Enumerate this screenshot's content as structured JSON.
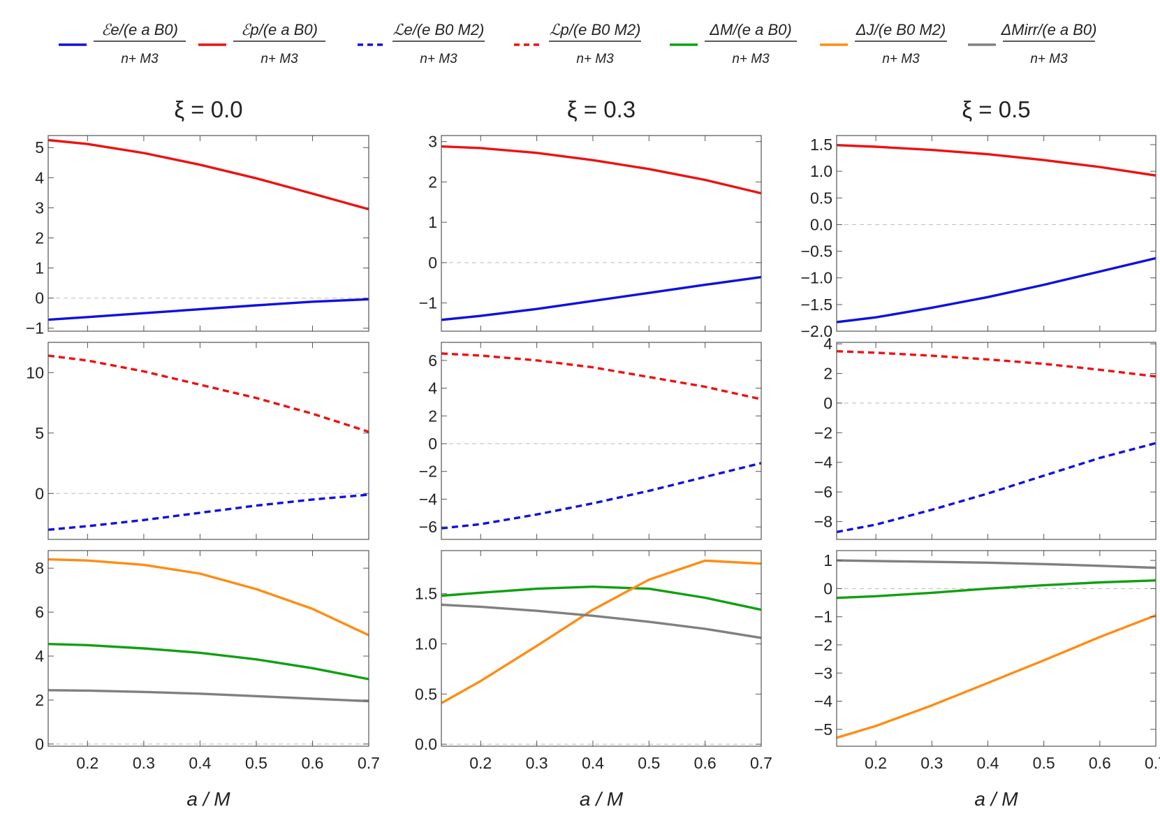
{
  "chart_data": {
    "type": "line",
    "xlabel": "a / M",
    "xlim": [
      0.13,
      0.7
    ],
    "xticks": [
      0.2,
      0.3,
      0.4,
      0.5,
      0.6,
      0.7
    ],
    "column_titles": [
      "ξ = 0.0",
      "ξ = 0.3",
      "ξ = 0.5"
    ],
    "legend": [
      {
        "key": "Ee",
        "numerator": "ℰe/(e a B0)",
        "denominator": "n+ M3",
        "color": "#1010e0",
        "dash": "solid"
      },
      {
        "key": "Ep",
        "numerator": "ℰp/(e a B0)",
        "denominator": "n+ M3",
        "color": "#ee1111",
        "dash": "solid"
      },
      {
        "key": "Le",
        "numerator": "ℒe/(e B0 M2)",
        "denominator": "n+ M3",
        "color": "#1010e0",
        "dash": "dashed"
      },
      {
        "key": "Lp",
        "numerator": "ℒp/(e B0 M2)",
        "denominator": "n+ M3",
        "color": "#ee1111",
        "dash": "dashed"
      },
      {
        "key": "dM",
        "numerator": "ΔM/(e a B0)",
        "denominator": "n+ M3",
        "color": "#11a011",
        "dash": "solid"
      },
      {
        "key": "dJ",
        "numerator": "ΔJ/(e B0 M2)",
        "denominator": "n+ M3",
        "color": "#ff8c14",
        "dash": "solid"
      },
      {
        "key": "dMirr",
        "numerator": "ΔMirr/(e a B0)",
        "denominator": "n+ M3",
        "color": "#808080",
        "dash": "solid"
      }
    ],
    "x": [
      0.13,
      0.2,
      0.3,
      0.4,
      0.5,
      0.6,
      0.7
    ],
    "panels": [
      {
        "column": 0,
        "row": 0,
        "ylim": [
          -1.1,
          5.4
        ],
        "yticks": [
          -1,
          0,
          1,
          2,
          3,
          4,
          5
        ],
        "series": [
          {
            "key": "Ep",
            "values": [
              5.25,
              5.12,
              4.82,
              4.43,
              3.98,
              3.47,
              2.95
            ]
          },
          {
            "key": "Ee",
            "values": [
              -0.72,
              -0.63,
              -0.5,
              -0.37,
              -0.24,
              -0.12,
              -0.04
            ]
          }
        ]
      },
      {
        "column": 0,
        "row": 1,
        "ylim": [
          -3.8,
          12.5
        ],
        "yticks": [
          0,
          5,
          10
        ],
        "series": [
          {
            "key": "Lp",
            "values": [
              11.4,
              11.0,
              10.1,
              9.0,
              7.9,
              6.6,
              5.1
            ]
          },
          {
            "key": "Le",
            "values": [
              -3.0,
              -2.7,
              -2.2,
              -1.6,
              -1.0,
              -0.5,
              -0.1
            ]
          }
        ]
      },
      {
        "column": 0,
        "row": 2,
        "ylim": [
          -0.1,
          8.8
        ],
        "yticks": [
          0,
          2,
          4,
          6,
          8
        ],
        "series": [
          {
            "key": "dJ",
            "values": [
              8.4,
              8.35,
              8.15,
              7.75,
              7.05,
              6.15,
              4.95
            ]
          },
          {
            "key": "dM",
            "values": [
              4.55,
              4.5,
              4.35,
              4.15,
              3.85,
              3.45,
              2.95
            ]
          },
          {
            "key": "dMirr",
            "values": [
              2.45,
              2.43,
              2.37,
              2.29,
              2.18,
              2.06,
              1.95
            ]
          }
        ]
      },
      {
        "column": 1,
        "row": 0,
        "ylim": [
          -1.7,
          3.15
        ],
        "yticks": [
          -1,
          0,
          1,
          2,
          3
        ],
        "series": [
          {
            "key": "Ep",
            "values": [
              2.88,
              2.84,
              2.72,
              2.54,
              2.32,
              2.05,
              1.72
            ]
          },
          {
            "key": "Ee",
            "values": [
              -1.42,
              -1.32,
              -1.15,
              -0.95,
              -0.75,
              -0.55,
              -0.36
            ]
          }
        ]
      },
      {
        "column": 1,
        "row": 1,
        "ylim": [
          -6.9,
          7.3
        ],
        "yticks": [
          -6,
          -4,
          -2,
          0,
          2,
          4,
          6
        ],
        "series": [
          {
            "key": "Lp",
            "values": [
              6.5,
              6.35,
              6.0,
              5.5,
              4.8,
              4.1,
              3.2
            ]
          },
          {
            "key": "Le",
            "values": [
              -6.1,
              -5.8,
              -5.1,
              -4.3,
              -3.4,
              -2.4,
              -1.4
            ]
          }
        ]
      },
      {
        "column": 1,
        "row": 2,
        "ylim": [
          -0.02,
          1.93
        ],
        "yticks": [
          0.0,
          0.5,
          1.0,
          1.5
        ],
        "series": [
          {
            "key": "dM",
            "values": [
              1.48,
              1.51,
              1.55,
              1.57,
              1.55,
              1.46,
              1.34
            ]
          },
          {
            "key": "dJ",
            "values": [
              0.41,
              0.63,
              0.98,
              1.34,
              1.64,
              1.83,
              1.8
            ]
          },
          {
            "key": "dMirr",
            "values": [
              1.39,
              1.37,
              1.33,
              1.28,
              1.22,
              1.15,
              1.06
            ]
          }
        ]
      },
      {
        "column": 2,
        "row": 0,
        "ylim": [
          -2.0,
          1.67
        ],
        "yticks": [
          -2.0,
          -1.5,
          -1.0,
          -0.5,
          0.0,
          0.5,
          1.0,
          1.5
        ],
        "series": [
          {
            "key": "Ep",
            "values": [
              1.49,
              1.46,
              1.4,
              1.32,
              1.21,
              1.08,
              0.92
            ]
          },
          {
            "key": "Ee",
            "values": [
              -1.83,
              -1.74,
              -1.56,
              -1.36,
              -1.13,
              -0.88,
              -0.63
            ]
          }
        ]
      },
      {
        "column": 2,
        "row": 1,
        "ylim": [
          -9.2,
          4.1
        ],
        "yticks": [
          -8,
          -6,
          -4,
          -2,
          0,
          2,
          4
        ],
        "series": [
          {
            "key": "Lp",
            "values": [
              3.5,
              3.4,
              3.2,
              2.95,
              2.65,
              2.25,
              1.8
            ]
          },
          {
            "key": "Le",
            "values": [
              -8.7,
              -8.2,
              -7.2,
              -6.1,
              -4.9,
              -3.7,
              -2.7
            ]
          }
        ]
      },
      {
        "column": 2,
        "row": 2,
        "ylim": [
          -5.6,
          1.35
        ],
        "yticks": [
          -5,
          -4,
          -3,
          -2,
          -1,
          0,
          1
        ],
        "series": [
          {
            "key": "dMirr",
            "values": [
              1.0,
              0.98,
              0.95,
              0.92,
              0.87,
              0.81,
              0.74
            ]
          },
          {
            "key": "dM",
            "values": [
              -0.33,
              -0.27,
              -0.15,
              0.0,
              0.12,
              0.22,
              0.29
            ]
          },
          {
            "key": "dJ",
            "values": [
              -5.3,
              -4.88,
              -4.15,
              -3.35,
              -2.55,
              -1.72,
              -0.95
            ]
          }
        ]
      }
    ]
  }
}
